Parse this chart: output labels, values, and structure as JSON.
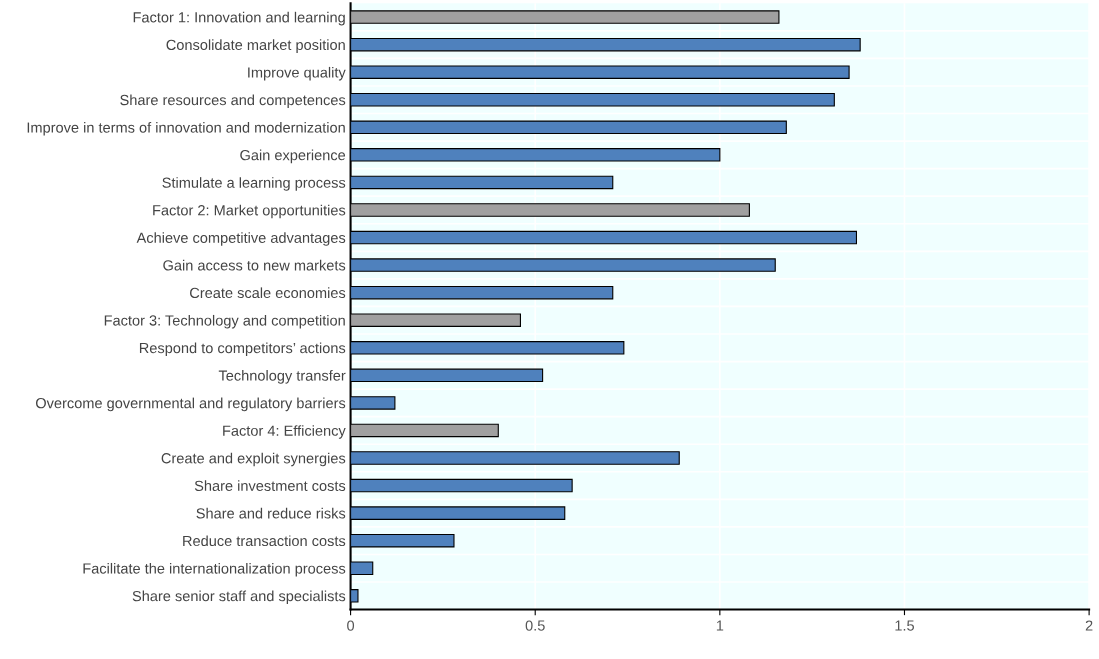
{
  "chart_data": {
    "type": "bar",
    "orientation": "horizontal",
    "categories": [
      "Factor 1: Innovation and learning",
      "Consolidate market position",
      "Improve quality",
      "Share resources and competences",
      "Improve in terms of innovation and modernization",
      "Gain experience",
      "Stimulate a learning process",
      "Factor 2: Market opportunities",
      "Achieve competitive advantages",
      "Gain access to new markets",
      "Create scale economies",
      "Factor 3: Technology and competition",
      "Respond to competitors’ actions",
      "Technology transfer",
      "Overcome governmental and regulatory barriers",
      "Factor 4: Efficiency",
      "Create and exploit synergies",
      "Share investment costs",
      "Share and reduce risks",
      "Reduce transaction costs",
      "Facilitate the internationalization process",
      "Share senior staff and specialists"
    ],
    "values": [
      1.16,
      1.38,
      1.35,
      1.31,
      1.18,
      1.0,
      0.71,
      1.08,
      1.37,
      1.15,
      0.71,
      0.46,
      0.74,
      0.52,
      0.12,
      0.4,
      0.89,
      0.6,
      0.58,
      0.28,
      0.06,
      0.02
    ],
    "colors": [
      "#a0a0a0",
      "#4f81bd",
      "#4f81bd",
      "#4f81bd",
      "#4f81bd",
      "#4f81bd",
      "#4f81bd",
      "#a0a0a0",
      "#4f81bd",
      "#4f81bd",
      "#4f81bd",
      "#a0a0a0",
      "#4f81bd",
      "#4f81bd",
      "#4f81bd",
      "#a0a0a0",
      "#4f81bd",
      "#4f81bd",
      "#4f81bd",
      "#4f81bd",
      "#4f81bd",
      "#4f81bd"
    ],
    "xlim": [
      0,
      2
    ],
    "xticks": [
      0,
      0.5,
      1,
      1.5,
      2
    ],
    "grid": true
  }
}
